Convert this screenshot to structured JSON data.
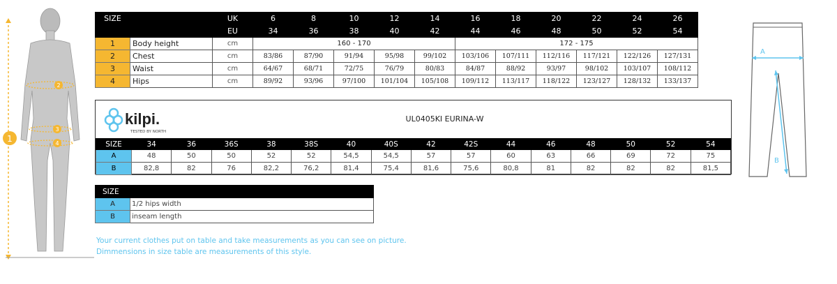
{
  "size_chart": {
    "header_size": "SIZE",
    "uk_label": "UK",
    "eu_label": "EU",
    "uk": [
      "6",
      "8",
      "10",
      "12",
      "14",
      "16",
      "18",
      "20",
      "22",
      "24",
      "26"
    ],
    "eu": [
      "34",
      "36",
      "38",
      "40",
      "42",
      "44",
      "46",
      "48",
      "50",
      "52",
      "54"
    ],
    "rows": [
      {
        "num": "1",
        "label": "Body height",
        "unit": "cm",
        "groups": [
          "160 - 170",
          "172 - 175"
        ]
      },
      {
        "num": "2",
        "label": "Chest",
        "unit": "cm",
        "values": [
          "83/86",
          "87/90",
          "91/94",
          "95/98",
          "99/102",
          "103/106",
          "107/111",
          "112/116",
          "117/121",
          "122/126",
          "127/131"
        ]
      },
      {
        "num": "3",
        "label": "Waist",
        "unit": "cm",
        "values": [
          "64/67",
          "68/71",
          "72/75",
          "76/79",
          "80/83",
          "84/87",
          "88/92",
          "93/97",
          "98/102",
          "103/107",
          "108/112"
        ]
      },
      {
        "num": "4",
        "label": "Hips",
        "unit": "cm",
        "values": [
          "89/92",
          "93/96",
          "97/100",
          "101/104",
          "105/108",
          "109/112",
          "113/117",
          "118/122",
          "123/127",
          "128/132",
          "133/137"
        ]
      }
    ]
  },
  "product": {
    "brand": "kilpi",
    "tagline": "TESTED BY NORTH",
    "brand_color": "#5ec4ee",
    "title": "UL0405KI  EURINA-W",
    "header_size": "SIZE",
    "sizes": [
      "34",
      "36",
      "36S",
      "38",
      "38S",
      "40",
      "40S",
      "42",
      "42S",
      "44",
      "46",
      "48",
      "50",
      "52",
      "54"
    ],
    "rows": [
      {
        "label": "A",
        "values": [
          "48",
          "50",
          "50",
          "52",
          "52",
          "54,5",
          "54,5",
          "57",
          "57",
          "60",
          "63",
          "66",
          "69",
          "72",
          "75"
        ]
      },
      {
        "label": "B",
        "values": [
          "82,8",
          "82",
          "76",
          "82,2",
          "76,2",
          "81,4",
          "75,4",
          "81,6",
          "75,6",
          "80,8",
          "81",
          "82",
          "82",
          "82",
          "81,5"
        ]
      }
    ]
  },
  "legend": {
    "header": "SIZE",
    "rows": [
      {
        "label": "A",
        "desc": "1/2 hips width"
      },
      {
        "label": "B",
        "desc": "inseam length"
      }
    ]
  },
  "notes": [
    "Your current clothes put on table and take measurements as you can see on picture.",
    "Dimmensions in size table are measurements of this style."
  ],
  "figure": {
    "markers": [
      "1",
      "2",
      "3",
      "4"
    ],
    "pants_markers": [
      "A",
      "B"
    ],
    "accent_color": "#f5b731"
  }
}
